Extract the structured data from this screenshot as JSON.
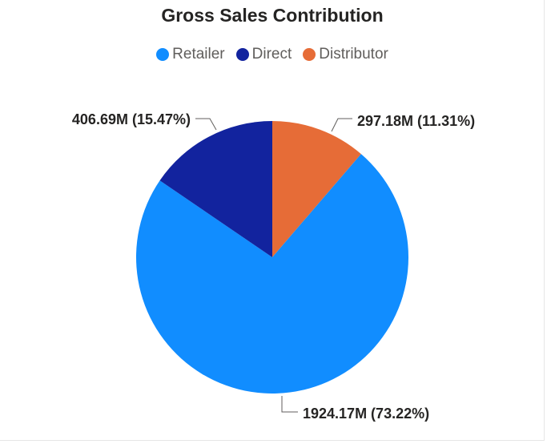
{
  "chart_data": {
    "type": "pie",
    "title": "Gross Sales Contribution",
    "legend_position": "top-center",
    "slices": [
      {
        "name": "Retailer",
        "value": 1924.17,
        "label": "1924.17M (73.22%)",
        "color": "#118DFF"
      },
      {
        "name": "Direct",
        "value": 406.69,
        "label": "406.69M (15.47%)",
        "color": "#12239E"
      },
      {
        "name": "Distributor",
        "value": 297.18,
        "label": "297.18M (11.31%)",
        "color": "#E66C37"
      }
    ]
  }
}
